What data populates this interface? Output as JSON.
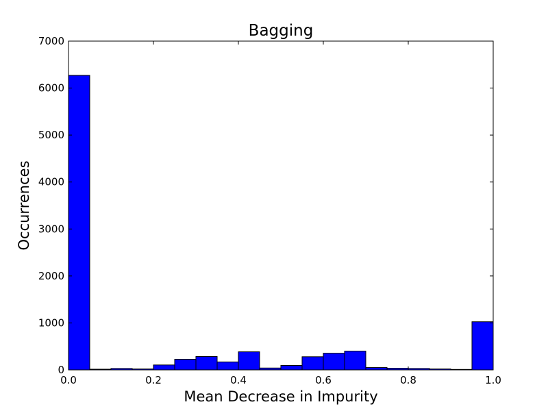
{
  "chart_data": {
    "type": "bar",
    "title": "Bagging",
    "xlabel": "Mean Decrease in Impurity",
    "ylabel": "Occurrences",
    "xlim": [
      0.0,
      1.0
    ],
    "ylim": [
      0,
      7000
    ],
    "bin_width": 0.05,
    "bin_starts": [
      0.0,
      0.05,
      0.1,
      0.15,
      0.2,
      0.25,
      0.3,
      0.35,
      0.4,
      0.45,
      0.5,
      0.55,
      0.6,
      0.65,
      0.7,
      0.75,
      0.8,
      0.85,
      0.9,
      0.95
    ],
    "values": [
      6270,
      15,
      30,
      20,
      105,
      225,
      285,
      170,
      385,
      40,
      95,
      280,
      355,
      400,
      50,
      35,
      30,
      20,
      10,
      1025
    ],
    "xticks": [
      "0.0",
      "0.2",
      "0.4",
      "0.6",
      "0.8",
      "1.0"
    ],
    "xtick_values": [
      0.0,
      0.2,
      0.4,
      0.6,
      0.8,
      1.0
    ],
    "yticks": [
      "0",
      "1000",
      "2000",
      "3000",
      "4000",
      "5000",
      "6000",
      "7000"
    ],
    "ytick_values": [
      0,
      1000,
      2000,
      3000,
      4000,
      5000,
      6000,
      7000
    ],
    "bar_color": "#0000ff",
    "edge_color": "#000000",
    "grid": false
  }
}
